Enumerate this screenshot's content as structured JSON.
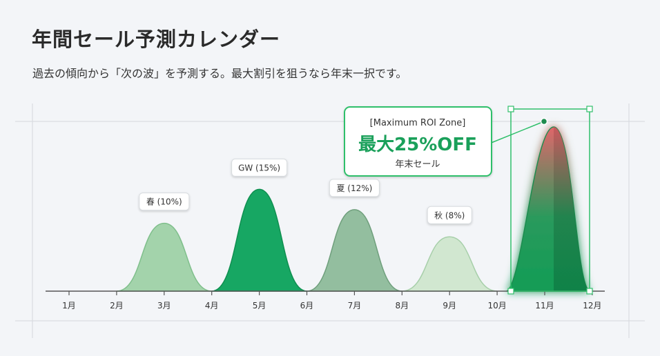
{
  "header": {
    "title": "年間セール予測カレンダー",
    "subtitle": "過去の傾向から「次の波」を予測する。最大割引を狙うなら年末一択です。"
  },
  "callout": {
    "bracket": "[Maximum ROI Zone]",
    "big": "最大25%OFF",
    "sub": "年末セール"
  },
  "chart_data": {
    "type": "area",
    "categories": [
      "1月",
      "2月",
      "3月",
      "4月",
      "5月",
      "6月",
      "7月",
      "8月",
      "9月",
      "10月",
      "11月",
      "12月"
    ],
    "peaks": [
      {
        "label": "春 (10%)",
        "month": 3,
        "value": 10
      },
      {
        "label": "GW (15%)",
        "month": 5,
        "value": 15
      },
      {
        "label": "夏 (12%)",
        "month": 7,
        "value": 12
      },
      {
        "label": "秋 (8%)",
        "month": 9,
        "value": 8
      },
      {
        "label": "年末セール",
        "month": 11,
        "value": 25
      }
    ],
    "grid": false,
    "colors": {
      "spring": "#a3d3ab",
      "gw": "#17a763",
      "summer": "#93be9f",
      "autumn": "#d1e7d0",
      "yearend_top": "#e0666a",
      "yearend_bottom": "#0f9d58",
      "accent": "#2fbf6a"
    }
  }
}
